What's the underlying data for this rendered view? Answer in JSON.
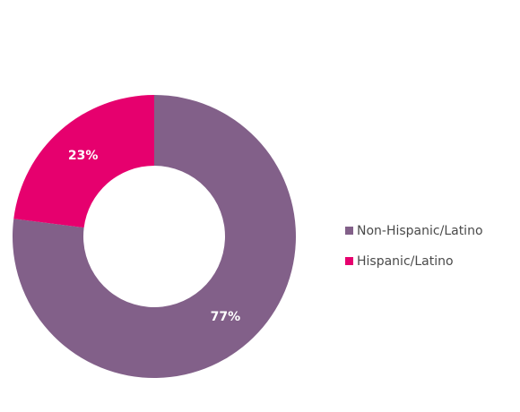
{
  "chart_data": {
    "type": "pie",
    "title": "",
    "donut": true,
    "legend_position": "right",
    "slices": [
      {
        "label": "Non-Hispanic/Latino",
        "value": 77,
        "display": "77%",
        "color": "#826089"
      },
      {
        "label": "Hispanic/Latino",
        "value": 23,
        "display": "23%",
        "color": "#e6006e"
      }
    ]
  }
}
